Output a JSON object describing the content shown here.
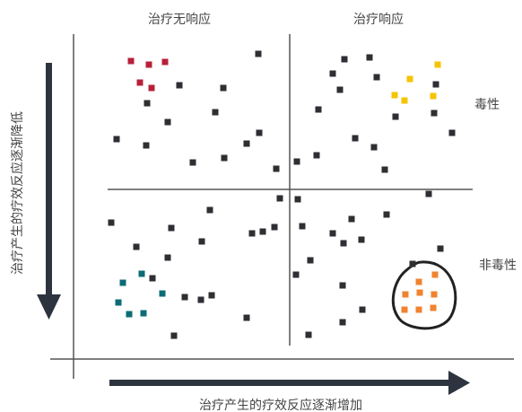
{
  "labels": {
    "top_left": "治疗无响应",
    "top_right": "治疗响应",
    "right_top": "毒性",
    "right_bottom": "非毒性",
    "y_axis": "治疗产生的疗效反应逐渐降低",
    "x_axis": "治疗产生的疗效反应逐渐增加"
  },
  "colors": {
    "dark": "#2e2e33",
    "red": "#b8203a",
    "yellow": "#f5c400",
    "teal": "#0d6b75",
    "orange": "#f0832f",
    "line": "#555555",
    "arrow": "#2d3440"
  },
  "groups": {
    "dark": [
      [
        288,
        60
      ],
      [
        200,
        95
      ],
      [
        249,
        98
      ],
      [
        164,
        115
      ],
      [
        240,
        125
      ],
      [
        187,
        136
      ],
      [
        130,
        155
      ],
      [
        163,
        162
      ],
      [
        289,
        148
      ],
      [
        275,
        160
      ],
      [
        250,
        176
      ],
      [
        215,
        181
      ],
      [
        308,
        188
      ],
      [
        384,
        66
      ],
      [
        412,
        64
      ],
      [
        371,
        82
      ],
      [
        379,
        100
      ],
      [
        420,
        86
      ],
      [
        355,
        122
      ],
      [
        441,
        130
      ],
      [
        484,
        126
      ],
      [
        486,
        94
      ],
      [
        396,
        154
      ],
      [
        504,
        148
      ],
      [
        331,
        180
      ],
      [
        353,
        173
      ],
      [
        429,
        189
      ],
      [
        417,
        164
      ],
      [
        478,
        216
      ],
      [
        312,
        221
      ],
      [
        332,
        222
      ],
      [
        124,
        248
      ],
      [
        234,
        234
      ],
      [
        191,
        254
      ],
      [
        293,
        258
      ],
      [
        281,
        260
      ],
      [
        306,
        253
      ],
      [
        337,
        252
      ],
      [
        371,
        260
      ],
      [
        392,
        244
      ],
      [
        431,
        239
      ],
      [
        152,
        275
      ],
      [
        225,
        269
      ],
      [
        383,
        271
      ],
      [
        403,
        267
      ],
      [
        491,
        277
      ],
      [
        187,
        287
      ],
      [
        346,
        290
      ],
      [
        330,
        306
      ],
      [
        460,
        294
      ],
      [
        206,
        331
      ],
      [
        224,
        334
      ],
      [
        236,
        329
      ],
      [
        382,
        318
      ],
      [
        275,
        354
      ],
      [
        194,
        374
      ],
      [
        344,
        373
      ],
      [
        382,
        359
      ],
      [
        404,
        345
      ],
      [
        170,
        310
      ]
    ],
    "red": [
      [
        146,
        68
      ],
      [
        166,
        72
      ],
      [
        184,
        69
      ],
      [
        156,
        92
      ],
      [
        169,
        98
      ]
    ],
    "yellow": [
      [
        488,
        72
      ],
      [
        457,
        88
      ],
      [
        440,
        106
      ],
      [
        451,
        112
      ],
      [
        483,
        107
      ]
    ],
    "teal": [
      [
        158,
        305
      ],
      [
        137,
        315
      ],
      [
        181,
        327
      ],
      [
        132,
        337
      ],
      [
        144,
        350
      ],
      [
        160,
        349
      ]
    ],
    "orange": [
      [
        485,
        306
      ],
      [
        467,
        314
      ],
      [
        452,
        328
      ],
      [
        484,
        328
      ],
      [
        468,
        326
      ],
      [
        451,
        345
      ],
      [
        467,
        345
      ],
      [
        483,
        343
      ]
    ]
  }
}
